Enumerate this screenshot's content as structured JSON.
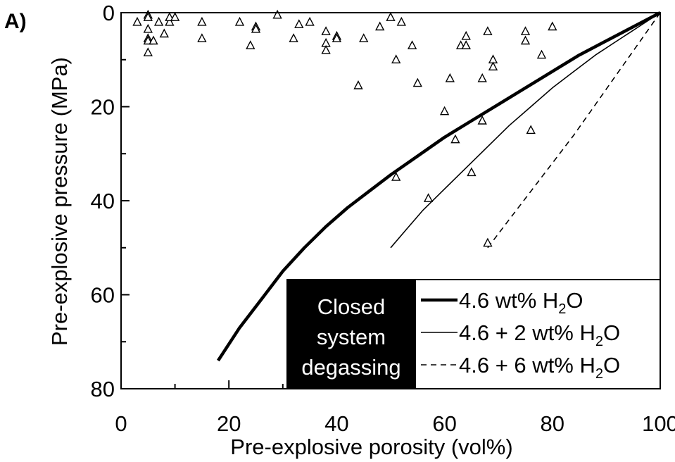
{
  "chart_data": {
    "type": "scatter",
    "panel_label": "A)",
    "title": "",
    "xlabel": "Pre-explosive porosity (vol%)",
    "ylabel": "Pre-explosive pressure (MPa)",
    "xlim": [
      0,
      100
    ],
    "ylim": [
      0,
      80
    ],
    "y_inverted": true,
    "x_ticks": [
      0,
      20,
      40,
      60,
      80,
      100
    ],
    "x_tick_labels": [
      "0",
      "20",
      "40",
      "60",
      "80",
      "100"
    ],
    "y_ticks": [
      0,
      20,
      40,
      60,
      80
    ],
    "y_tick_labels": [
      "0",
      "20",
      "40",
      "60",
      "80"
    ],
    "grid": false,
    "points": {
      "marker": "open-triangle",
      "x": [
        3,
        5,
        5,
        5,
        5,
        5,
        5,
        6,
        7,
        8,
        9,
        9,
        10,
        15,
        15,
        22,
        24,
        25,
        25,
        29,
        32,
        33,
        35,
        38,
        38,
        38,
        40,
        40,
        44,
        45,
        48,
        50,
        51,
        51,
        52,
        54,
        55,
        57,
        60,
        61,
        62,
        63,
        64,
        64,
        64,
        65,
        67,
        67,
        68,
        68,
        69,
        69,
        75,
        75,
        76,
        78,
        80
      ],
      "y": [
        2,
        0.5,
        1,
        3.5,
        5.5,
        6,
        8.5,
        6,
        2,
        4.5,
        2,
        1,
        1,
        2,
        5.5,
        2,
        7,
        3,
        3.5,
        0.5,
        5.5,
        2.5,
        2,
        4,
        6.5,
        8,
        5,
        5.5,
        15.5,
        5.5,
        3,
        1,
        10,
        35,
        2,
        7,
        15,
        39.5,
        21,
        14,
        27,
        7,
        5,
        7,
        7,
        34,
        14,
        23,
        49,
        4,
        10,
        11.5,
        4,
        6,
        25,
        9,
        3
      ]
    },
    "series": [
      {
        "name": "4.6 wt% H2O",
        "style": "solid-thick",
        "x": [
          18,
          22,
          26,
          30,
          34,
          38,
          42,
          46,
          50,
          55,
          60,
          65,
          70,
          75,
          80,
          85,
          90,
          95,
          100
        ],
        "y": [
          74,
          67,
          61,
          55,
          50,
          45.5,
          41.5,
          38,
          34.5,
          30.5,
          26.5,
          23,
          19.5,
          16,
          12.5,
          9,
          6,
          3,
          0
        ]
      },
      {
        "name": "4.6 + 2 wt% H2O",
        "style": "solid-thin",
        "x": [
          50,
          53,
          56,
          60,
          64,
          68,
          72,
          76,
          80,
          84,
          88,
          92,
          96,
          100
        ],
        "y": [
          50,
          46,
          42,
          37.5,
          33,
          28.5,
          24,
          20,
          16,
          12.5,
          9,
          6,
          3,
          0
        ]
      },
      {
        "name": "4.6 + 6 wt% H2O",
        "style": "dashed",
        "x": [
          68,
          72,
          76,
          80,
          84,
          88,
          92,
          96,
          100
        ],
        "y": [
          50,
          44,
          38,
          32,
          26,
          19.5,
          13,
          6.5,
          0
        ]
      }
    ],
    "legend": {
      "placement": "bottom-right",
      "box_label_lines": [
        "Closed",
        "system",
        "degassing"
      ],
      "box_fill": "#000000",
      "box_text_color": "#ffffff",
      "entries": [
        {
          "prefix": "4.6 wt% H",
          "subscript": "2",
          "suffix": "O",
          "style": "solid-thick"
        },
        {
          "prefix": "4.6 + 2 wt% H",
          "subscript": "2",
          "suffix": "O",
          "style": "solid-thin"
        },
        {
          "prefix": "4.6 + 6 wt% H",
          "subscript": "2",
          "suffix": "O",
          "style": "dashed"
        }
      ]
    },
    "colors": {
      "ink": "#000000",
      "background": "#ffffff"
    }
  }
}
